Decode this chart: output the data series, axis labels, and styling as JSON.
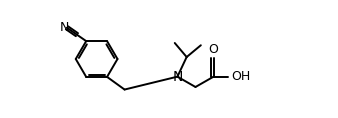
{
  "bg_color": "#ffffff",
  "line_color": "#000000",
  "lw": 1.4,
  "fs": 9,
  "fig_width": 3.38,
  "fig_height": 1.18,
  "dpi": 100,
  "xlim": [
    0,
    10
  ],
  "ylim": [
    0,
    3.5
  ]
}
